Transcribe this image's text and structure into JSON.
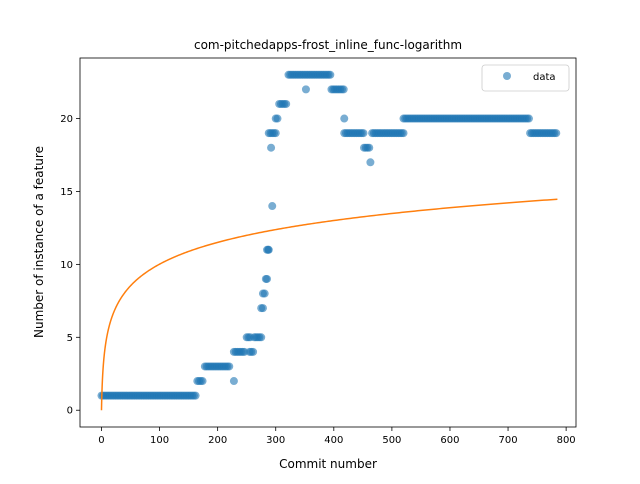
{
  "chart_data": {
    "type": "scatter",
    "title": "com-pitchedapps-frost_inline_func-logarithm",
    "xlabel": "Commit number",
    "ylabel": "Number of instance of a feature",
    "xlim": [
      -37,
      817
    ],
    "ylim": [
      -1.15,
      24.15
    ],
    "x_ticks": [
      0,
      100,
      200,
      300,
      400,
      500,
      600,
      700,
      800
    ],
    "y_ticks": [
      0,
      5,
      10,
      15,
      20
    ],
    "grid": false,
    "legend": {
      "position": "top-right",
      "entries": [
        "data"
      ]
    },
    "colors": {
      "data": "#1f77b4",
      "fit": "#ff7f0e"
    },
    "series": [
      {
        "name": "data",
        "kind": "scatter",
        "segments": [
          {
            "x_from": 0,
            "x_to": 162,
            "step": 3,
            "y": 1
          },
          {
            "x_from": 165,
            "x_to": 175,
            "step": 3,
            "y": 2
          },
          {
            "x_from": 178,
            "x_to": 222,
            "step": 3,
            "y": 3
          },
          {
            "x_from": 228,
            "x_to": 246,
            "step": 3,
            "y": 4
          },
          {
            "x_from": 250,
            "x_to": 257,
            "step": 3,
            "y": 5
          },
          {
            "x_from": 255,
            "x_to": 263,
            "step": 3,
            "y": 4
          },
          {
            "x_from": 263,
            "x_to": 275,
            "step": 3,
            "y": 5
          },
          {
            "x_from": 275,
            "x_to": 280,
            "step": 3,
            "y": 7
          },
          {
            "x_from": 278,
            "x_to": 283,
            "step": 3,
            "y": 8
          },
          {
            "x_from": 283,
            "x_to": 285,
            "step": 2,
            "y": 9
          },
          {
            "x_from": 285,
            "x_to": 288,
            "step": 3,
            "y": 11
          },
          {
            "x_from": 288,
            "x_to": 300,
            "step": 3,
            "y": 19
          },
          {
            "x_from": 300,
            "x_to": 304,
            "step": 3,
            "y": 20
          },
          {
            "x_from": 306,
            "x_to": 320,
            "step": 3,
            "y": 21
          },
          {
            "x_from": 322,
            "x_to": 396,
            "step": 3,
            "y": 23
          },
          {
            "x_from": 396,
            "x_to": 418,
            "step": 3,
            "y": 22
          },
          {
            "x_from": 418,
            "x_to": 452,
            "step": 3,
            "y": 19
          },
          {
            "x_from": 452,
            "x_to": 462,
            "step": 3,
            "y": 18
          },
          {
            "x_from": 466,
            "x_to": 520,
            "step": 3,
            "y": 19
          },
          {
            "x_from": 520,
            "x_to": 738,
            "step": 3,
            "y": 20
          },
          {
            "x_from": 738,
            "x_to": 785,
            "step": 3,
            "y": 19
          }
        ],
        "points": [
          [
            228,
            2
          ],
          [
            287,
            11
          ],
          [
            292,
            18
          ],
          [
            294,
            14
          ],
          [
            352,
            22
          ],
          [
            418,
            20
          ],
          [
            463,
            17
          ]
        ]
      },
      {
        "name": "",
        "kind": "line",
        "function": "a*ln(b*x+1)",
        "a": 2.17,
        "b": 1,
        "x_range": [
          0,
          785
        ]
      }
    ]
  }
}
